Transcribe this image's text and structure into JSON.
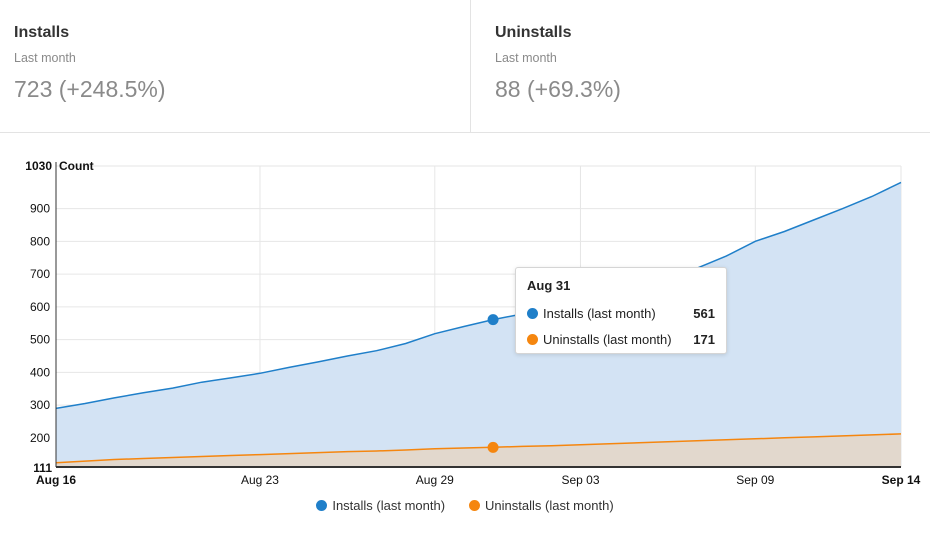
{
  "stats": [
    {
      "title": "Installs",
      "period": "Last month",
      "value": "723 (+248.5%)"
    },
    {
      "title": "Uninstalls",
      "period": "Last month",
      "value": "88 (+69.3%)"
    }
  ],
  "colors": {
    "installs": "#1f7fc9",
    "installs_fill": "#d3e3f4",
    "uninstalls": "#f5860f",
    "uninstalls_fill": "#e2d8cd",
    "grid": "#e6e6e6"
  },
  "chart_data": {
    "type": "area",
    "ylabel": "Count",
    "ylim": [
      111,
      1030
    ],
    "y_ticks": [
      "200",
      "300",
      "400",
      "500",
      "600",
      "700",
      "800",
      "900"
    ],
    "y_min_label": "111",
    "y_max_label": "1030",
    "x_ticks": [
      "Aug 23",
      "Aug 29",
      "Sep 03",
      "Sep 09"
    ],
    "x_start_label": "Aug 16",
    "x_end_label": "Sep 14",
    "x": [
      "Aug 16",
      "Aug 17",
      "Aug 18",
      "Aug 19",
      "Aug 20",
      "Aug 21",
      "Aug 22",
      "Aug 23",
      "Aug 24",
      "Aug 25",
      "Aug 26",
      "Aug 27",
      "Aug 28",
      "Aug 29",
      "Aug 30",
      "Aug 31",
      "Sep 01",
      "Sep 02",
      "Sep 03",
      "Sep 04",
      "Sep 05",
      "Sep 06",
      "Sep 07",
      "Sep 08",
      "Sep 09",
      "Sep 10",
      "Sep 11",
      "Sep 12",
      "Sep 13",
      "Sep 14"
    ],
    "series": [
      {
        "name": "Installs (last month)",
        "values": [
          290,
          305,
          322,
          338,
          352,
          370,
          383,
          397,
          415,
          432,
          450,
          466,
          488,
          518,
          540,
          561,
          578,
          598,
          618,
          640,
          665,
          690,
          718,
          755,
          800,
          830,
          865,
          900,
          937,
          980
        ]
      },
      {
        "name": "Uninstalls (last month)",
        "values": [
          124,
          129,
          134,
          137,
          140,
          143,
          146,
          149,
          152,
          155,
          158,
          160,
          163,
          167,
          169,
          171,
          174,
          176,
          179,
          182,
          185,
          188,
          191,
          194,
          197,
          200,
          203,
          206,
          209,
          212
        ]
      }
    ],
    "legend_position": "bottom",
    "grid": true
  },
  "tooltip": {
    "title": "Aug 31",
    "rows": [
      {
        "label": "Installs (last month)",
        "value": "561"
      },
      {
        "label": "Uninstalls (last month)",
        "value": "171"
      }
    ]
  },
  "legend": [
    "Installs (last month)",
    "Uninstalls (last month)"
  ]
}
